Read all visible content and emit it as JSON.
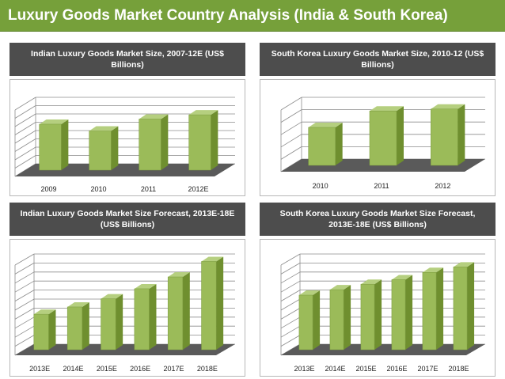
{
  "page": {
    "title": "Luxury Goods Market Country Analysis (India & South Korea)"
  },
  "colors": {
    "bar_front": "#9bbb59",
    "bar_side": "#6f8f2f",
    "bar_top": "#b5cf7f",
    "floor": "#5a5a5a",
    "header_bg": "#4d4d4d",
    "title_bg": "#76a03a"
  },
  "chart_data": [
    {
      "type": "bar",
      "title": "Indian Luxury Goods Market  Size, 2007-12E (US$ Billions)",
      "categories": [
        "2009",
        "2010",
        "2011",
        "2012E"
      ],
      "values": [
        5.4,
        4.6,
        6.0,
        6.5
      ],
      "ylim": [
        0,
        8
      ],
      "grid": true
    },
    {
      "type": "bar",
      "title": "South Korea Luxury Goods Market  Size, 2010-12 (US$ Billions)",
      "categories": [
        "2010",
        "2011",
        "2012"
      ],
      "values": [
        6.0,
        8.6,
        8.9
      ],
      "ylim": [
        0,
        10
      ],
      "grid": true
    },
    {
      "type": "bar",
      "title": "Indian Luxury Goods Market  Size Forecast, 2013E-18E  (US$ Billions)",
      "categories": [
        "2013E",
        "2014E",
        "2015E",
        "2016E",
        "2017E",
        "2018E"
      ],
      "values": [
        3.9,
        4.7,
        5.6,
        6.7,
        8.0,
        9.7
      ],
      "ylim": [
        0,
        10
      ],
      "grid": true
    },
    {
      "type": "bar",
      "title": "South Korea Luxury Goods Market  Size Forecast, 2013E-18E  (US$ Billions)",
      "categories": [
        "2013E",
        "2014E",
        "2015E",
        "2016E",
        "2017E",
        "2018E"
      ],
      "values": [
        6.0,
        6.6,
        7.2,
        7.7,
        8.5,
        9.1
      ],
      "ylim": [
        0,
        10
      ],
      "grid": true
    }
  ]
}
